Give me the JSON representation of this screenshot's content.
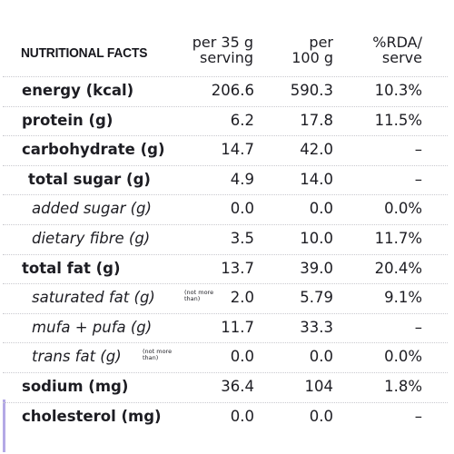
{
  "header": {
    "title": "NUTRITIONAL FACTS",
    "col1_line1": "per 35 g",
    "col1_line2": "serving",
    "col2_line1": "per",
    "col2_line2": "100 g",
    "col3_line1": "%RDA/",
    "col3_line2": "serve"
  },
  "rows": [
    {
      "label": "energy (kcal)",
      "note": "",
      "per_serving": "206.6",
      "per_100g": "590.3",
      "rda": "10.3%"
    },
    {
      "label": "protein (g)",
      "note": "",
      "per_serving": "6.2",
      "per_100g": "17.8",
      "rda": "11.5%"
    },
    {
      "label": "carbohydrate (g)",
      "note": "",
      "per_serving": "14.7",
      "per_100g": "42.0",
      "rda": "–"
    },
    {
      "label": "total sugar (g)",
      "note": "",
      "per_serving": "4.9",
      "per_100g": "14.0",
      "rda": "–"
    },
    {
      "label": "added sugar (g)",
      "note": "",
      "per_serving": "0.0",
      "per_100g": "0.0",
      "rda": "0.0%"
    },
    {
      "label": "dietary fibre (g)",
      "note": "",
      "per_serving": "3.5",
      "per_100g": "10.0",
      "rda": "11.7%"
    },
    {
      "label": "total fat (g)",
      "note": "",
      "per_serving": "13.7",
      "per_100g": "39.0",
      "rda": "20.4%"
    },
    {
      "label": "saturated fat (g)",
      "note_line1": "(not more",
      "note_line2": "than)",
      "per_serving": "2.0",
      "per_100g": "5.79",
      "rda": "9.1%"
    },
    {
      "label": "mufa + pufa (g)",
      "note": "",
      "per_serving": "11.7",
      "per_100g": "33.3",
      "rda": "–"
    },
    {
      "label": "trans fat (g)",
      "note_line1": "(not more",
      "note_line2": "than)",
      "per_serving": "0.0",
      "per_100g": "0.0",
      "rda": "0.0%"
    },
    {
      "label": "sodium (mg)",
      "note": "",
      "per_serving": "36.4",
      "per_100g": "104",
      "rda": "1.8%"
    },
    {
      "label": "cholesterol (mg)",
      "note": "",
      "per_serving": "0.0",
      "per_100g": "0.0",
      "rda": "–"
    }
  ],
  "colors": {
    "text": "#1d1d23",
    "accent_edge": "#b4a9e6",
    "divider": "#c9c9cf"
  }
}
